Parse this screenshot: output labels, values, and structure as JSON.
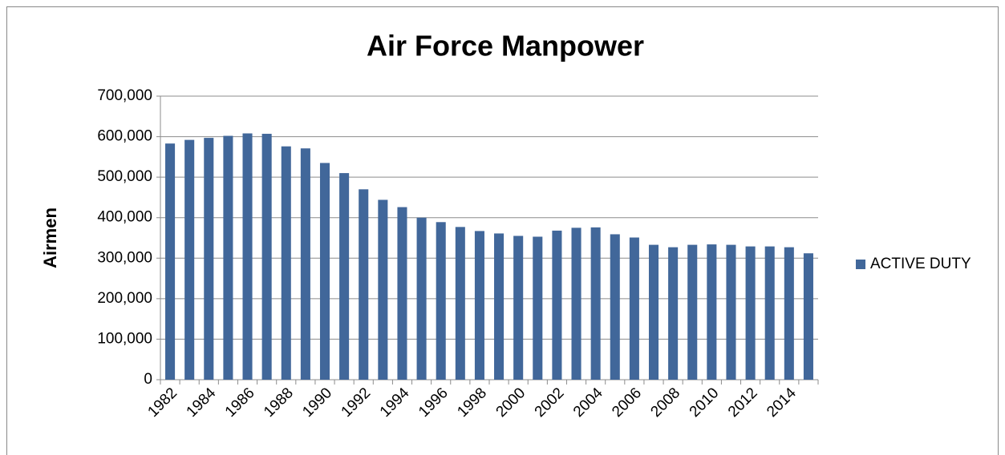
{
  "chart_data": {
    "type": "bar",
    "title": "Air Force Manpower",
    "y_label": "Airmen",
    "categories": [
      "1982",
      null,
      "1984",
      null,
      "1986",
      null,
      "1988",
      null,
      "1990",
      null,
      "1992",
      null,
      "1994",
      null,
      "1996",
      null,
      "1998",
      null,
      "2000",
      null,
      "2002",
      null,
      "2004",
      null,
      "2006",
      null,
      "2008",
      null,
      "2010",
      null,
      "2012",
      null,
      "2014",
      null
    ],
    "series": [
      {
        "name": "ACTIVE DUTY",
        "color": "#41679a",
        "values": [
          583000,
          592000,
          597000,
          602000,
          608000,
          607000,
          576000,
          571000,
          535000,
          510000,
          470000,
          444000,
          426000,
          400000,
          389000,
          377000,
          367000,
          361000,
          355000,
          353000,
          368000,
          375000,
          376000,
          359000,
          351000,
          333000,
          327000,
          333000,
          334000,
          333000,
          329000,
          329000,
          327000,
          312000
        ]
      }
    ],
    "ylim": [
      0,
      700000
    ],
    "yticks": [
      0,
      {
        "value": 100000,
        "label": "100,000"
      },
      {
        "value": 200000,
        "label": "200,000"
      },
      {
        "value": 300000,
        "label": "300,000"
      },
      {
        "value": 400000,
        "label": "400,000"
      },
      {
        "value": 500000,
        "label": "500,000"
      },
      {
        "value": 600000,
        "label": "600,000"
      },
      {
        "value": 700000,
        "label": "700,000"
      }
    ],
    "grid": true,
    "legend": "right"
  }
}
